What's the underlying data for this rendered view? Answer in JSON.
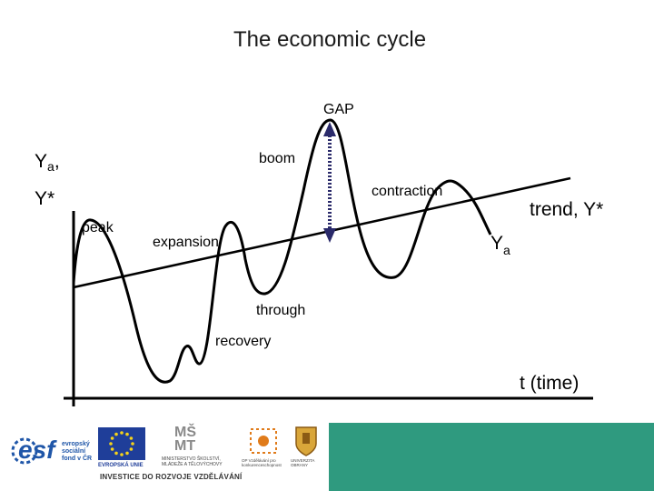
{
  "title": "The economic cycle",
  "labels": {
    "gap": "GAP",
    "boom": "boom",
    "contraction": "contraction",
    "trend": "trend, Y*",
    "ya_main": "Y",
    "ya_sub": "a",
    "yaxis_ya": "Y",
    "yaxis_ya_sub": "a",
    "yaxis_ya_comma": ",",
    "yaxis_ystar": "Y*",
    "peak": "peak",
    "expansion": "expansion",
    "through": "through",
    "recovery": "recovery",
    "time_axis": "t (time)"
  },
  "footer": {
    "esf_logo": "esf",
    "esf_text": "evropský sociální fond v ČR",
    "eu_text": "EVROPSKÁ UNIE",
    "msmt_logo": "MŠ MT",
    "msmt_text": "MINISTERSTVO ŠKOLSTVÍ, MLÁDEŽE A TĚLOVÝCHOVY",
    "op_text": "OP Vzdělávání pro konkurenceschopnost",
    "uni_text": "UNIVERZITA OBRANY",
    "slogan": "INVESTICE DO ROZVOJE VZDĚLÁVÁNÍ"
  },
  "colors": {
    "accent_sidebar": "#2f9a7f",
    "eu_blue": "#1f3e99",
    "eu_star": "#f4d21b",
    "esf_blue": "#1f56a8"
  }
}
